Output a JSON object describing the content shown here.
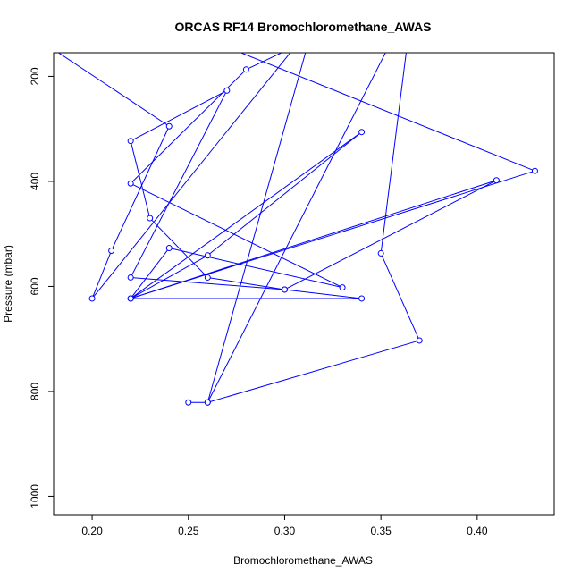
{
  "chart_data": {
    "type": "line",
    "title": "ORCAS RF14 Bromochloromethane_AWAS",
    "xlabel": "Bromochloromethane_AWAS",
    "ylabel": "Pressure (mbar)",
    "xlim": [
      0.18,
      0.44
    ],
    "ylim": [
      1035,
      155
    ],
    "y_reversed": true,
    "xticks": [
      "0.20",
      "0.25",
      "0.30",
      "0.35",
      "0.40"
    ],
    "yticks": [
      "200",
      "400",
      "600",
      "800",
      "1000"
    ],
    "grid": false,
    "legend": "none",
    "series_color": "#0000ff",
    "points": [
      {
        "x": 0.25,
        "y": 821
      },
      {
        "x": 0.26,
        "y": 821
      },
      {
        "x": 0.37,
        "y": 703
      },
      {
        "x": 0.35,
        "y": 537
      },
      {
        "x": 0.365,
        "y": 100
      },
      {
        "x": 0.36,
        "y": 100
      },
      {
        "x": 0.26,
        "y": 821
      },
      {
        "x": 0.315,
        "y": 100
      },
      {
        "x": 0.2,
        "y": 623
      },
      {
        "x": 0.21,
        "y": 532
      },
      {
        "x": 0.24,
        "y": 295
      },
      {
        "x": 0.16,
        "y": 100
      },
      {
        "x": 0.24,
        "y": 100
      },
      {
        "x": 0.43,
        "y": 380
      },
      {
        "x": 0.22,
        "y": 623
      },
      {
        "x": 0.41,
        "y": 398
      },
      {
        "x": 0.3,
        "y": 606
      },
      {
        "x": 0.22,
        "y": 583
      },
      {
        "x": 0.27,
        "y": 227
      },
      {
        "x": 0.22,
        "y": 323
      },
      {
        "x": 0.23,
        "y": 470
      },
      {
        "x": 0.26,
        "y": 583
      },
      {
        "x": 0.3,
        "y": 606
      },
      {
        "x": 0.34,
        "y": 623
      },
      {
        "x": 0.22,
        "y": 623
      },
      {
        "x": 0.34,
        "y": 306
      },
      {
        "x": 0.26,
        "y": 541
      },
      {
        "x": 0.22,
        "y": 623
      },
      {
        "x": 0.24,
        "y": 527
      },
      {
        "x": 0.33,
        "y": 602
      },
      {
        "x": 0.22,
        "y": 404
      },
      {
        "x": 0.28,
        "y": 187
      },
      {
        "x": 0.33,
        "y": 100
      }
    ]
  }
}
